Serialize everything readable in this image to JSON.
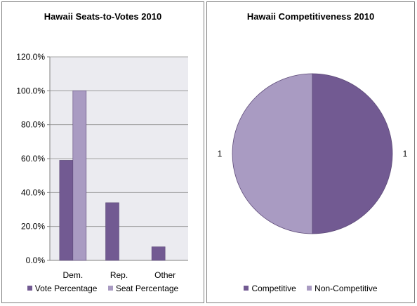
{
  "colors": {
    "vote": "#725a92",
    "seat": "#a99bc2",
    "plot_bg": "#ebebf0",
    "grid": "#8c8c8c",
    "competitive": "#725a92",
    "noncompetitive": "#a99bc2"
  },
  "chart_data": [
    {
      "type": "bar",
      "title": "Hawaii Seats-to-Votes 2010",
      "categories": [
        "Dem.",
        "Rep.",
        "Other"
      ],
      "series": [
        {
          "name": "Vote Percentage",
          "values": [
            59.0,
            34.0,
            8.0
          ]
        },
        {
          "name": "Seat Percentage",
          "values": [
            100.0,
            0.0,
            0.0
          ]
        }
      ],
      "ylim": [
        0,
        120
      ],
      "yticks": [
        "0.0%",
        "20.0%",
        "40.0%",
        "60.0%",
        "80.0%",
        "100.0%",
        "120.0%"
      ],
      "grid": true,
      "legend": "bottom"
    },
    {
      "type": "pie",
      "title": "Hawaii Competitiveness 2010",
      "labels": [
        "Competitive",
        "Non-Competitive"
      ],
      "values": [
        1,
        1
      ],
      "data_labels": [
        "1",
        "1"
      ],
      "legend": "bottom"
    }
  ]
}
